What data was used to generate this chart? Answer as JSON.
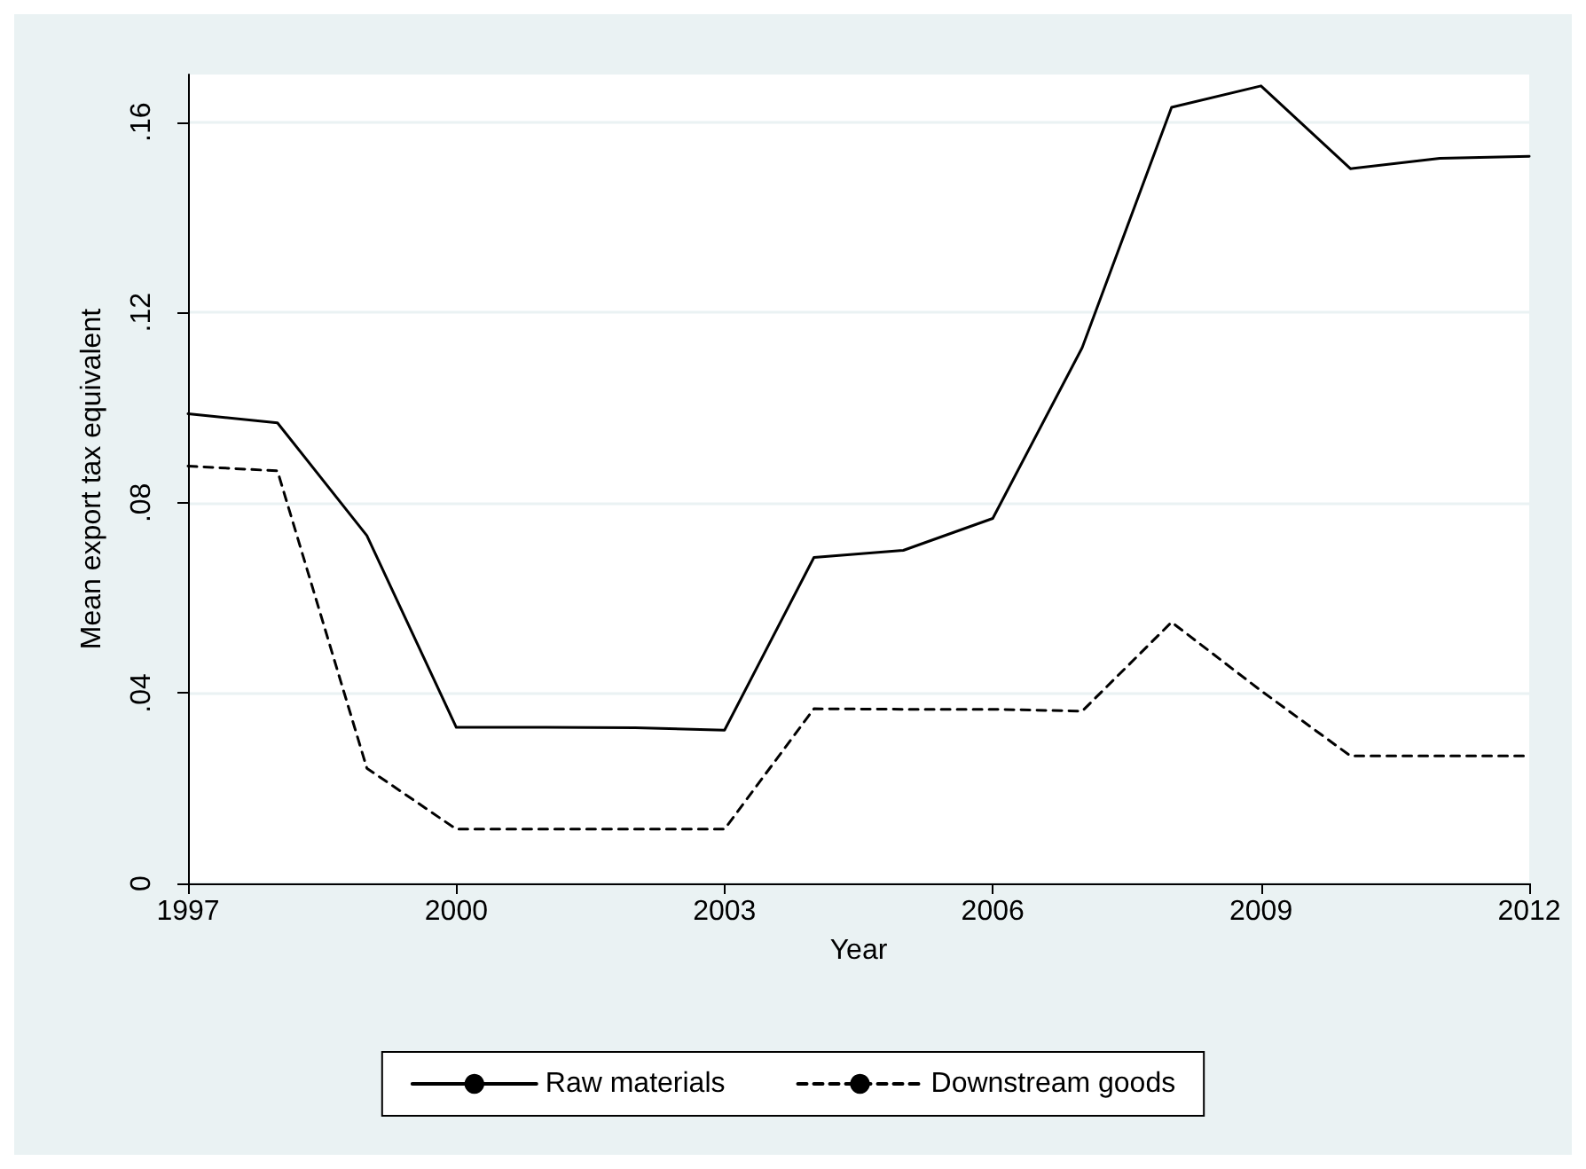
{
  "chart_data": {
    "type": "line",
    "xlabel": "Year",
    "ylabel": "Mean export tax equivalent",
    "x": [
      1997,
      1998,
      1999,
      2000,
      2001,
      2002,
      2003,
      2004,
      2005,
      2006,
      2007,
      2008,
      2009,
      2010,
      2011,
      2012
    ],
    "series": [
      {
        "name": "Raw materials",
        "color": "#000000",
        "line_style": "solid",
        "values": [
          0.0987,
          0.0968,
          0.0731,
          0.0328,
          0.0328,
          0.0327,
          0.0322,
          0.0685,
          0.07,
          0.0767,
          0.1126,
          0.1631,
          0.1676,
          0.1502,
          0.1524,
          0.1528
        ]
      },
      {
        "name": "Downstream goods",
        "color": "#000000",
        "line_style": "dashed",
        "values": [
          0.0877,
          0.0867,
          0.0242,
          0.0114,
          0.0114,
          0.0114,
          0.0114,
          0.0367,
          0.0366,
          0.0366,
          0.0362,
          0.0549,
          0.0405,
          0.0268,
          0.0268,
          0.0268
        ]
      }
    ],
    "xlim": [
      1997,
      2012
    ],
    "xticks": [
      1997,
      2000,
      2003,
      2006,
      2009,
      2012
    ],
    "ylim": [
      0,
      0.17
    ],
    "yticks": [
      {
        "value": 0,
        "label": "0"
      },
      {
        "value": 0.04,
        "label": ".04"
      },
      {
        "value": 0.08,
        "label": ".08"
      },
      {
        "value": 0.12,
        "label": ".12"
      },
      {
        "value": 0.16,
        "label": ".16"
      }
    ],
    "grid": "y",
    "legend": "bottom",
    "marker": "none"
  }
}
